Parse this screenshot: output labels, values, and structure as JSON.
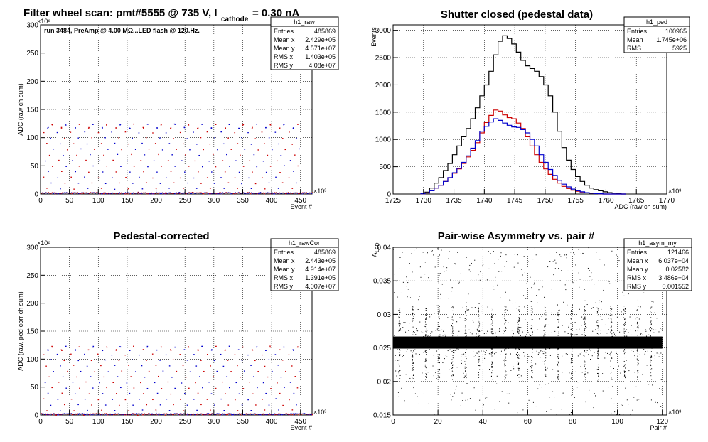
{
  "panels": [
    {
      "id": "raw",
      "title_main": "Filter wheel scan: pmt#5555 @   735 V, I",
      "title_sub": "cathode",
      "title_tail": "= 0.30 nA",
      "annotation": "run 3484, PreAmp @ 4.00 MΩ...LED flash @  120.Hz.",
      "stats": {
        "name": "h1_raw",
        "rows": [
          [
            "Entries",
            "485869"
          ],
          [
            "Mean x",
            "2.429e+05"
          ],
          [
            "Mean y",
            "4.571e+07"
          ],
          [
            "RMS x",
            "1.403e+05"
          ],
          [
            "RMS y",
            "4.08e+07"
          ]
        ]
      }
    },
    {
      "id": "ped",
      "title_main": "Shutter closed (pedestal data)",
      "stats": {
        "name": "h1_ped",
        "rows": [
          [
            "Entries",
            "100965"
          ],
          [
            "Mean",
            "1.745e+06"
          ],
          [
            "RMS",
            "5925"
          ]
        ]
      }
    },
    {
      "id": "cor",
      "title_main": "Pedestal-corrected",
      "stats": {
        "name": "h1_rawCor",
        "rows": [
          [
            "Entries",
            "485869"
          ],
          [
            "Mean x",
            "2.443e+05"
          ],
          [
            "Mean y",
            "4.914e+07"
          ],
          [
            "RMS x",
            "1.391e+05"
          ],
          [
            "RMS y",
            "4.007e+07"
          ]
        ]
      }
    },
    {
      "id": "asym",
      "title_main": "Pair-wise Asymmetry vs. pair #",
      "stats": {
        "name": "h1_asym_my",
        "rows": [
          [
            "Entries",
            "121466"
          ],
          [
            "Mean x",
            "6.037e+04"
          ],
          [
            "Mean y",
            "0.02582"
          ],
          [
            "RMS x",
            "3.486e+04"
          ],
          [
            "RMS y",
            "0.001552"
          ]
        ]
      }
    }
  ],
  "chart_data": [
    {
      "type": "scatter",
      "title": "Filter wheel scan: pmt#5555 @   735 V, I cathode = 0.30 nA",
      "xlabel": "Event #",
      "ylabel": "ADC (raw ch sum)",
      "x_multiplier": "×10³",
      "y_multiplier": "×10⁶",
      "xlim": [
        0,
        470
      ],
      "ylim": [
        0,
        300
      ],
      "x_ticks": [
        "0",
        "50",
        "100",
        "150",
        "200",
        "250",
        "300",
        "350",
        "400",
        "450"
      ],
      "y_ticks": [
        "0",
        "50",
        "100",
        "150",
        "200",
        "250",
        "300"
      ],
      "grid": true,
      "cycle_length": 23.6,
      "levels": [
        3,
        10,
        20,
        30,
        40,
        50,
        60,
        70,
        80,
        90,
        100,
        110,
        118,
        124
      ],
      "colors": [
        "#0000cc",
        "#cc0000"
      ]
    },
    {
      "type": "histogram",
      "title": "Shutter closed (pedestal data)",
      "xlabel": "ADC (raw ch sum)",
      "ylabel": "Events",
      "x_multiplier": "×10³",
      "xlim": [
        1725,
        1770
      ],
      "ylim": [
        0,
        3100
      ],
      "x_ticks": [
        "1725",
        "1730",
        "1735",
        "1740",
        "1745",
        "1750",
        "1755",
        "1760",
        "1765",
        "1770"
      ],
      "y_ticks": [
        "0",
        "500",
        "1000",
        "1500",
        "2000",
        "2500",
        "3000"
      ],
      "grid": true,
      "bin_start": 1729.5,
      "bin_width": 0.75,
      "series": [
        {
          "color": "#000000",
          "values": [
            10,
            35,
            110,
            200,
            300,
            430,
            560,
            720,
            880,
            1050,
            1200,
            1380,
            1580,
            1800,
            2000,
            2250,
            2550,
            2800,
            2900,
            2850,
            2750,
            2600,
            2450,
            2350,
            2300,
            2250,
            2150,
            2000,
            1800,
            1500,
            1150,
            850,
            620,
            450,
            320,
            230,
            160,
            110,
            80,
            60,
            40,
            25,
            15,
            8,
            0
          ]
        },
        {
          "color": "#cc0000",
          "values": [
            5,
            20,
            60,
            110,
            160,
            230,
            300,
            380,
            460,
            560,
            680,
            800,
            940,
            1120,
            1310,
            1440,
            1540,
            1520,
            1450,
            1400,
            1380,
            1300,
            1200,
            1050,
            880,
            720,
            580,
            460,
            360,
            270,
            200,
            140,
            100,
            70,
            50,
            35,
            25,
            15,
            8,
            5,
            0,
            0,
            0,
            0,
            0
          ]
        },
        {
          "color": "#0000cc",
          "values": [
            5,
            20,
            60,
            110,
            160,
            230,
            300,
            390,
            470,
            580,
            700,
            840,
            980,
            1150,
            1240,
            1320,
            1380,
            1350,
            1300,
            1260,
            1230,
            1220,
            1180,
            1120,
            1000,
            880,
            720,
            580,
            450,
            340,
            250,
            180,
            130,
            90,
            60,
            40,
            25,
            15,
            8,
            5,
            0,
            0,
            0,
            0,
            0
          ]
        }
      ]
    },
    {
      "type": "scatter",
      "title": "Pedestal-corrected",
      "xlabel": "Event #",
      "ylabel": "ADC (raw, ped-corr ch sum)",
      "x_multiplier": "×10³",
      "y_multiplier": "×10⁶",
      "xlim": [
        0,
        470
      ],
      "ylim": [
        0,
        300
      ],
      "x_ticks": [
        "0",
        "50",
        "100",
        "150",
        "200",
        "250",
        "300",
        "350",
        "400",
        "450"
      ],
      "y_ticks": [
        "0",
        "50",
        "100",
        "150",
        "200",
        "250",
        "300"
      ],
      "grid": true,
      "cycle_length": 23.6,
      "levels": [
        1,
        9,
        19,
        29,
        39,
        49,
        59,
        69,
        79,
        89,
        99,
        109,
        117,
        123
      ],
      "colors": [
        "#0000cc",
        "#cc0000"
      ]
    },
    {
      "type": "scatter",
      "title": "Pair-wise Asymmetry vs. pair #",
      "xlabel": "Pair #",
      "ylabel": "A_LED",
      "x_multiplier": "×10³",
      "xlim": [
        0,
        122
      ],
      "ylim": [
        0.015,
        0.04
      ],
      "x_ticks": [
        "0",
        "20",
        "40",
        "60",
        "80",
        "100",
        "120"
      ],
      "y_ticks": [
        "0.015",
        "0.02",
        "0.025",
        "0.03",
        "0.035",
        "0.04"
      ],
      "grid": true,
      "band_center": 0.0258,
      "band_halfwidth": 0.0009,
      "spike_period": 5.9,
      "colors": [
        "#000000"
      ]
    }
  ]
}
